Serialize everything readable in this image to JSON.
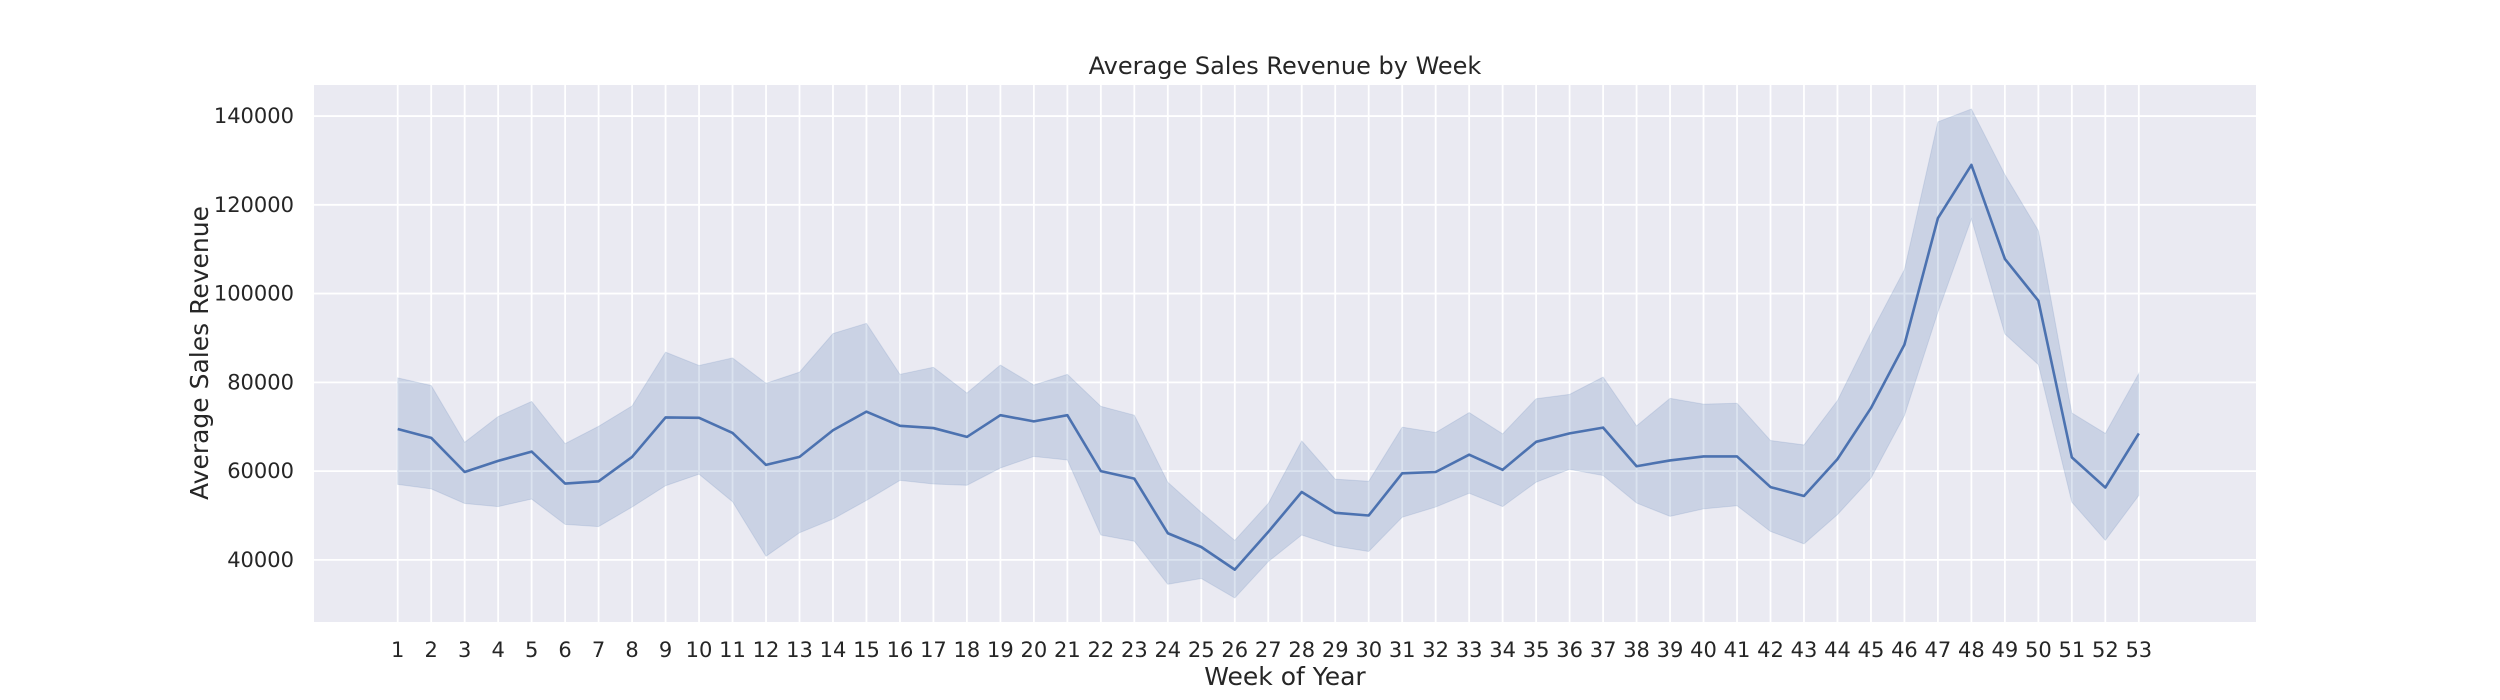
{
  "chart_data": {
    "type": "line",
    "title": "Average Sales Revenue by Week",
    "xlabel": "Week of Year",
    "ylabel": "Average Sales Revenue",
    "x": [
      1,
      2,
      3,
      4,
      5,
      6,
      7,
      8,
      9,
      10,
      11,
      12,
      13,
      14,
      15,
      16,
      17,
      18,
      19,
      20,
      21,
      22,
      23,
      24,
      25,
      26,
      27,
      28,
      29,
      30,
      31,
      32,
      33,
      34,
      35,
      36,
      37,
      38,
      39,
      40,
      41,
      42,
      43,
      44,
      45,
      46,
      47,
      48,
      49,
      50,
      51,
      52,
      53
    ],
    "x_ticks": [
      "1",
      "2",
      "3",
      "4",
      "5",
      "6",
      "7",
      "8",
      "9",
      "10",
      "11",
      "12",
      "13",
      "14",
      "15",
      "16",
      "17",
      "18",
      "19",
      "20",
      "21",
      "22",
      "23",
      "24",
      "25",
      "26",
      "27",
      "28",
      "29",
      "30",
      "31",
      "32",
      "33",
      "34",
      "35",
      "36",
      "37",
      "38",
      "39",
      "40",
      "41",
      "42",
      "43",
      "44",
      "45",
      "46",
      "47",
      "48",
      "49",
      "50",
      "51",
      "52",
      "53"
    ],
    "xlim": [
      -1.5,
      56.5
    ],
    "ylim": [
      26000,
      147000
    ],
    "y_ticks": [
      "40000",
      "60000",
      "80000",
      "100000",
      "120000",
      "140000"
    ],
    "y_tick_values": [
      40000,
      60000,
      80000,
      100000,
      120000,
      140000
    ],
    "grid": true,
    "series": [
      {
        "values": [
          69500,
          67500,
          59800,
          62300,
          64400,
          57200,
          57700,
          63200,
          72100,
          72000,
          68600,
          61400,
          63200,
          69200,
          73400,
          70200,
          69700,
          67700,
          72600,
          71200,
          72600,
          60000,
          58300,
          46000,
          42900,
          37800,
          46300,
          55300,
          50600,
          50000,
          59500,
          59800,
          63700,
          60300,
          66600,
          68500,
          69800,
          61100,
          62400,
          63300,
          63300,
          56400,
          54400,
          62700,
          74200,
          88500,
          117000,
          129000,
          107800,
          98400,
          63100,
          56300,
          68500
        ],
        "ci_upper": [
          81000,
          79300,
          66500,
          72300,
          75700,
          66200,
          70100,
          74700,
          86800,
          83800,
          85500,
          79800,
          82300,
          91000,
          93300,
          81800,
          83400,
          77600,
          83900,
          79400,
          81800,
          74600,
          72600,
          57500,
          50700,
          44400,
          52700,
          66800,
          58200,
          57700,
          69900,
          68700,
          73200,
          68400,
          76300,
          77300,
          81200,
          70200,
          76400,
          75100,
          75300,
          66900,
          65900,
          75900,
          91100,
          105400,
          138700,
          141600,
          126800,
          114200,
          73100,
          68500,
          82000
        ],
        "ci_lower": [
          57000,
          56000,
          52700,
          52000,
          53700,
          48000,
          47500,
          51900,
          56700,
          59300,
          53100,
          40800,
          46100,
          49200,
          53400,
          57900,
          57100,
          56800,
          60700,
          63300,
          62500,
          45600,
          44200,
          34500,
          35800,
          31400,
          39600,
          45600,
          43100,
          41900,
          49600,
          51900,
          55000,
          52000,
          57500,
          60400,
          59000,
          52800,
          49800,
          51500,
          52200,
          46400,
          43600,
          50200,
          58400,
          72500,
          95800,
          116800,
          90900,
          84000,
          53000,
          44400,
          54500
        ],
        "color": "#4c72b0",
        "band_color": "#4c72b0"
      }
    ],
    "colors": {
      "plot_background": "#eaeaf2",
      "grid": "#ffffff"
    }
  }
}
